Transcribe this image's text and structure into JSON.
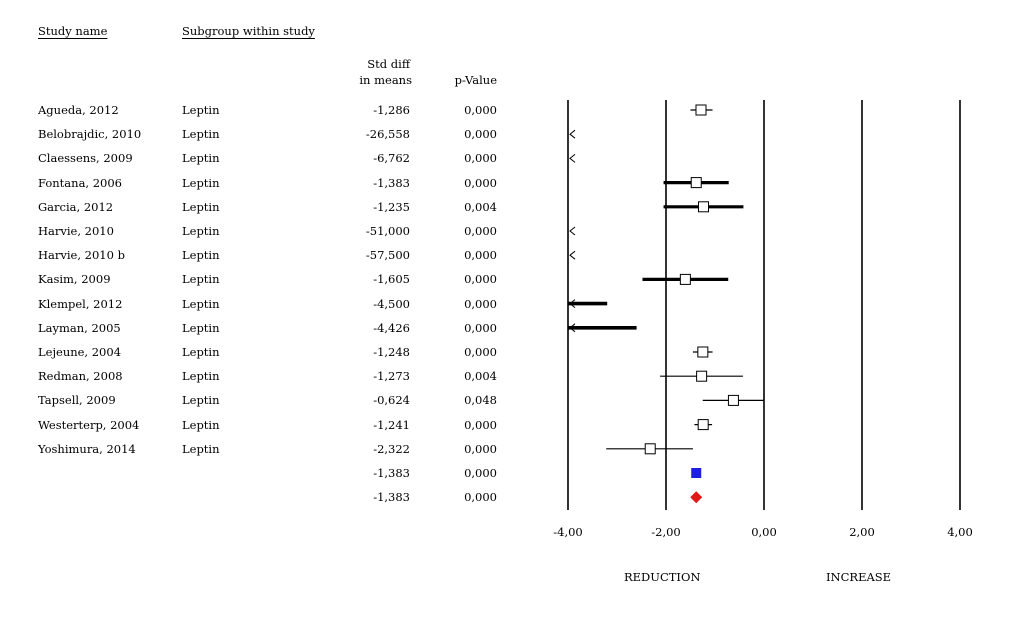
{
  "headers": {
    "study_name": "Study name",
    "subgroup": "Subgroup within study",
    "std_diff_line1": "Std diff",
    "std_diff_line2": "in means",
    "p_value": "p-Value"
  },
  "rows": [
    {
      "study": "Agueda, 2012",
      "subgroup": "Leptin",
      "std_diff": "-1,286",
      "p": "0,000"
    },
    {
      "study": "Belobrajdic, 2010",
      "subgroup": "Leptin",
      "std_diff": "-26,558",
      "p": "0,000"
    },
    {
      "study": "Claessens, 2009",
      "subgroup": "Leptin",
      "std_diff": "-6,762",
      "p": "0,000"
    },
    {
      "study": "Fontana, 2006",
      "subgroup": "Leptin",
      "std_diff": "-1,383",
      "p": "0,000"
    },
    {
      "study": "Garcia, 2012",
      "subgroup": "Leptin",
      "std_diff": "-1,235",
      "p": "0,004"
    },
    {
      "study": "Harvie, 2010",
      "subgroup": "Leptin",
      "std_diff": "-51,000",
      "p": "0,000"
    },
    {
      "study": "Harvie, 2010 b",
      "subgroup": "Leptin",
      "std_diff": "-57,500",
      "p": "0,000"
    },
    {
      "study": "Kasim, 2009",
      "subgroup": "Leptin",
      "std_diff": "-1,605",
      "p": "0,000"
    },
    {
      "study": "Klempel, 2012",
      "subgroup": "Leptin",
      "std_diff": "-4,500",
      "p": "0,000"
    },
    {
      "study": "Layman, 2005",
      "subgroup": "Leptin",
      "std_diff": "-4,426",
      "p": "0,000"
    },
    {
      "study": "Lejeune, 2004",
      "subgroup": "Leptin",
      "std_diff": "-1,248",
      "p": "0,000"
    },
    {
      "study": "Redman, 2008",
      "subgroup": "Leptin",
      "std_diff": "-1,273",
      "p": "0,004"
    },
    {
      "study": "Tapsell, 2009",
      "subgroup": "Leptin",
      "std_diff": "-0,624",
      "p": "0,048"
    },
    {
      "study": "Westerterp, 2004",
      "subgroup": "Leptin",
      "std_diff": "-1,241",
      "p": "0,000"
    },
    {
      "study": "Yoshimura, 2014",
      "subgroup": "Leptin",
      "std_diff": "-2,322",
      "p": "0,000"
    }
  ],
  "pooled": [
    {
      "std_diff": "-1,383",
      "p": "0,000"
    },
    {
      "std_diff": "-1,383",
      "p": "0,000"
    }
  ],
  "axis_labels": {
    "left": "REDUCTION",
    "right": "INCREASE"
  },
  "chart_data": {
    "type": "forest",
    "xlim": [
      -4,
      4
    ],
    "ticks": [
      -4,
      -2,
      0,
      2,
      4
    ],
    "tick_labels": [
      "-4,00",
      "-2,00",
      "0,00",
      "2,00",
      "4,00"
    ],
    "gridlines": true,
    "studies": [
      {
        "est": -1.286,
        "lo": -1.5,
        "hi": -1.05,
        "w": 1
      },
      {
        "est": -26.558,
        "lo": -30,
        "hi": -23,
        "w": 0
      },
      {
        "est": -6.762,
        "lo": -8,
        "hi": -5.5,
        "w": 0
      },
      {
        "est": -1.383,
        "lo": -2.05,
        "hi": -0.72,
        "w": 3
      },
      {
        "est": -1.235,
        "lo": -2.05,
        "hi": -0.42,
        "w": 3
      },
      {
        "est": -51.0,
        "lo": -55,
        "hi": -47,
        "w": 0
      },
      {
        "est": -57.5,
        "lo": -61,
        "hi": -54,
        "w": 0
      },
      {
        "est": -1.605,
        "lo": -2.48,
        "hi": -0.73,
        "w": 3
      },
      {
        "est": -4.5,
        "lo": -5.8,
        "hi": -3.2,
        "w": 4
      },
      {
        "est": -4.426,
        "lo": -6.0,
        "hi": -2.6,
        "w": 4
      },
      {
        "est": -1.248,
        "lo": -1.45,
        "hi": -1.05,
        "w": 1
      },
      {
        "est": -1.273,
        "lo": -2.12,
        "hi": -0.43,
        "w": 1
      },
      {
        "est": -0.624,
        "lo": -1.25,
        "hi": 0.0,
        "w": 1
      },
      {
        "est": -1.241,
        "lo": -1.42,
        "hi": -1.06,
        "w": 1
      },
      {
        "est": -2.322,
        "lo": -3.22,
        "hi": -1.45,
        "w": 1
      }
    ],
    "pooled": [
      {
        "est": -1.383,
        "marker": "square",
        "color": "#1f1fe0"
      },
      {
        "est": -1.383,
        "marker": "diamond",
        "color": "#e01818"
      }
    ]
  }
}
